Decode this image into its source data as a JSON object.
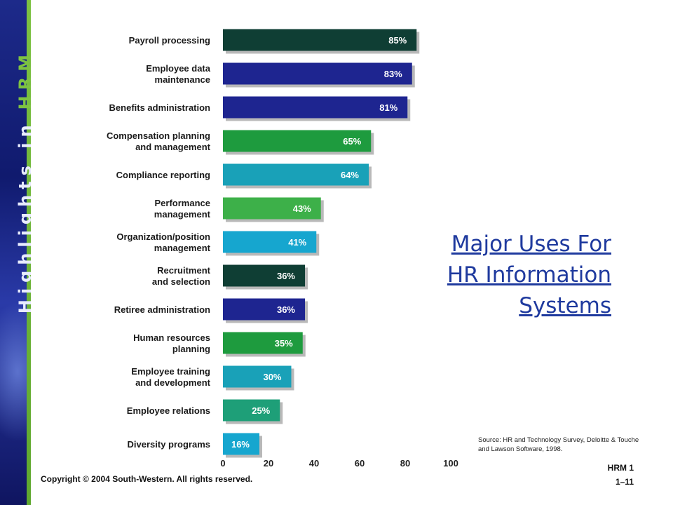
{
  "sidebar": {
    "text": "Highlights in",
    "brand": "HRM"
  },
  "title_lines": [
    "Major Uses For",
    "HR Information",
    "Systems"
  ],
  "source": "Source: HR and Technology Survey, Deloitte & Touche and Lawson Software, 1998.",
  "slide_number": {
    "line1": "HRM 1",
    "line2": "1–11"
  },
  "copyright": "Copyright © 2004 South-Western. All rights reserved.",
  "colors": {
    "dark_teal": "#0f3e34",
    "navy": "#1e2590",
    "green": "#1e9b3e",
    "teal": "#19a1b8",
    "light_green": "#3db049",
    "cyan": "#16a6cf",
    "sea_green": "#1e9f78"
  },
  "chart_data": {
    "type": "bar",
    "orientation": "horizontal",
    "categories": [
      [
        "Payroll  processing"
      ],
      [
        "Employee data",
        "maintenance"
      ],
      [
        "Benefits administration"
      ],
      [
        "Compensation planning",
        "and management"
      ],
      [
        "Compliance reporting"
      ],
      [
        "Performance",
        "management"
      ],
      [
        "Organization/position",
        "management"
      ],
      [
        "Recruitment",
        "and selection"
      ],
      [
        "Retiree administration"
      ],
      [
        "Human resources",
        "planning"
      ],
      [
        "Employee training",
        "and development"
      ],
      [
        "Employee relations"
      ],
      [
        "Diversity programs"
      ]
    ],
    "values": [
      85,
      83,
      81,
      65,
      64,
      43,
      41,
      36,
      36,
      35,
      30,
      25,
      16
    ],
    "value_labels": [
      "85%",
      "83%",
      "81%",
      "65%",
      "64%",
      "43%",
      "41%",
      "36%",
      "36%",
      "35%",
      "30%",
      "25%",
      "16%"
    ],
    "bar_colors": [
      "dark_teal",
      "navy",
      "navy",
      "green",
      "teal",
      "light_green",
      "cyan",
      "dark_teal",
      "navy",
      "green",
      "teal",
      "sea_green",
      "cyan"
    ],
    "xlim": [
      0,
      100
    ],
    "xticks": [
      0,
      20,
      40,
      60,
      80,
      100
    ]
  }
}
